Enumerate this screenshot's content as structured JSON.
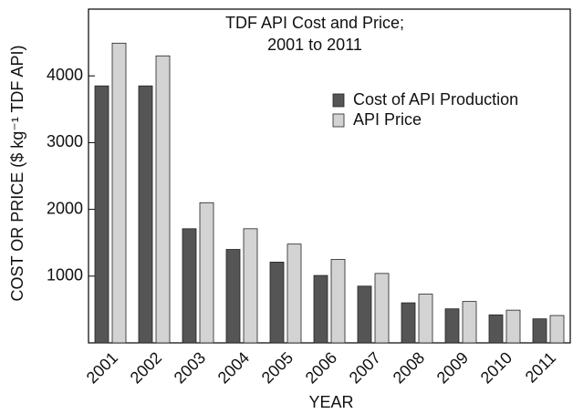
{
  "chart_data": {
    "type": "bar",
    "title": [
      "TDF API Cost and Price;",
      "2001 to 2011"
    ],
    "x_label": "YEAR",
    "y_label": "COST OR PRICE ($ kg⁻¹ TDF API)",
    "categories": [
      "2001",
      "2002",
      "2003",
      "2004",
      "2005",
      "2006",
      "2007",
      "2008",
      "2009",
      "2010",
      "2011"
    ],
    "series": [
      {
        "name": "Cost of API Production",
        "color": "#555555",
        "values": [
          3850,
          3850,
          1710,
          1400,
          1210,
          1010,
          850,
          600,
          510,
          420,
          360
        ]
      },
      {
        "name": "API Price",
        "color": "#d3d3d3",
        "values": [
          4490,
          4300,
          2100,
          1710,
          1480,
          1250,
          1040,
          730,
          620,
          490,
          410
        ]
      }
    ],
    "ylim": [
      0,
      5000
    ],
    "yticks": [
      1000,
      2000,
      3000,
      4000
    ],
    "grid": false,
    "legend": "upper right"
  }
}
